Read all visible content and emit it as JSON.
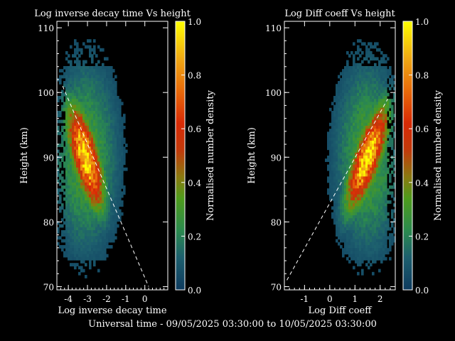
{
  "footer": "Universal time - 09/05/2025 03:30:00 to 10/05/2025 03:30:00",
  "chart_data": [
    {
      "type": "heatmap",
      "title": "Log inverse decay time Vs height",
      "xlabel": "Log inverse decay time",
      "ylabel": "Height (km)",
      "xlim": [
        -4.6,
        1.2
      ],
      "ylim": [
        69.5,
        111
      ],
      "xticks": [
        -4,
        -3,
        -2,
        -1,
        0
      ],
      "yticks": [
        70,
        80,
        90,
        100,
        110
      ],
      "colorbar": {
        "label": "Normalised number density",
        "range": [
          0.0,
          1.0
        ],
        "ticks": [
          "0.0",
          "0.2",
          "0.4",
          "0.6",
          "0.8",
          "1.0"
        ]
      },
      "density_peak": {
        "x": -3.1,
        "y": 90,
        "value": 1.0
      },
      "reference_line": {
        "style": "dashed",
        "points": [
          [
            -4.3,
            101
          ],
          [
            0.2,
            70
          ]
        ]
      }
    },
    {
      "type": "heatmap",
      "title": "Log Diff coeff Vs height",
      "xlabel": "Log Diff coeff",
      "ylabel": "Height (km)",
      "xlim": [
        -1.8,
        2.6
      ],
      "ylim": [
        69.5,
        111
      ],
      "xticks": [
        -1,
        0,
        1,
        2
      ],
      "yticks": [
        70,
        80,
        90,
        100,
        110
      ],
      "colorbar": {
        "label": "Normalised number density",
        "range": [
          0.0,
          1.0
        ],
        "ticks": [
          "0.0",
          "0.2",
          "0.4",
          "0.6",
          "0.8",
          "1.0"
        ]
      },
      "density_peak": {
        "x": 1.5,
        "y": 90,
        "value": 1.0
      },
      "reference_line": {
        "style": "dashed",
        "points": [
          [
            -1.7,
            71
          ],
          [
            2.3,
            99
          ]
        ]
      }
    }
  ]
}
